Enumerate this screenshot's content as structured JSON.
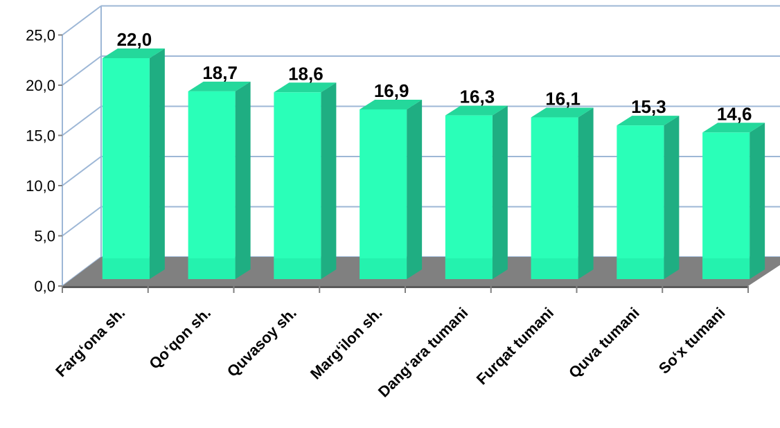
{
  "chart_data": {
    "type": "bar",
    "style": "3d-column",
    "categories": [
      "Farg‘ona sh.",
      "Qo‘qon sh.",
      "Quvasoy sh.",
      "Marg‘ilon sh.",
      "Dang‘ara tumani",
      "Furqat tumani",
      "Quva tumani",
      "So‘x tumani"
    ],
    "values": [
      22.0,
      18.7,
      18.6,
      16.9,
      16.3,
      16.1,
      15.3,
      14.6
    ],
    "data_labels": [
      "22,0",
      "18,7",
      "18,6",
      "16,9",
      "16,3",
      "16,1",
      "15,3",
      "14,6"
    ],
    "y_ticks": [
      0,
      5,
      10,
      15,
      20,
      25
    ],
    "y_tick_labels": [
      "0,0",
      "5,0",
      "10,0",
      "15,0",
      "20,0",
      "25,0"
    ],
    "ylim": [
      0,
      25
    ],
    "title": "",
    "xlabel": "",
    "ylabel": "",
    "grid": true,
    "legend": "none",
    "colors": {
      "bar_front": "#2affb8",
      "bar_side": "#1fae82",
      "bar_top": "#24d89b",
      "floor": "#808080",
      "gridline": "#9db7d6",
      "wall_frame": "#9db7d6"
    }
  }
}
